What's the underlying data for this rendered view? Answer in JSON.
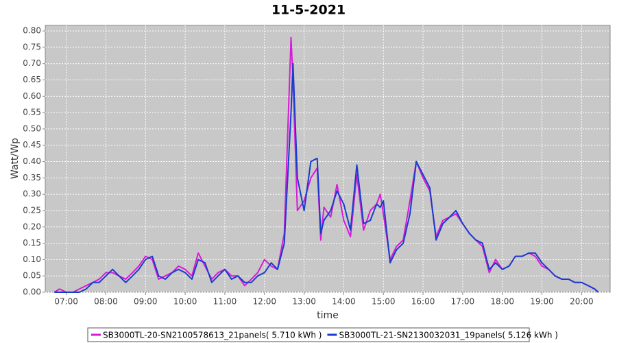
{
  "chart_data": {
    "type": "line",
    "title": "11-5-2021",
    "x_label": "time",
    "y_label": "Watt/Wp",
    "x": [
      6.7,
      6.83,
      7.0,
      7.17,
      7.33,
      7.5,
      7.67,
      7.83,
      8.0,
      8.17,
      8.33,
      8.5,
      8.67,
      8.83,
      9.0,
      9.17,
      9.33,
      9.5,
      9.67,
      9.83,
      10.0,
      10.17,
      10.33,
      10.5,
      10.67,
      10.83,
      11.0,
      11.17,
      11.33,
      11.5,
      11.67,
      11.83,
      12.0,
      12.17,
      12.33,
      12.5,
      12.67,
      12.72,
      12.83,
      13.0,
      13.17,
      13.33,
      13.42,
      13.5,
      13.67,
      13.83,
      14.0,
      14.17,
      14.33,
      14.5,
      14.67,
      14.83,
      14.92,
      15.0,
      15.17,
      15.33,
      15.5,
      15.67,
      15.83,
      16.0,
      16.17,
      16.33,
      16.5,
      16.67,
      16.83,
      17.0,
      17.17,
      17.33,
      17.5,
      17.67,
      17.83,
      18.0,
      18.17,
      18.33,
      18.5,
      18.67,
      18.83,
      19.0,
      19.17,
      19.33,
      19.5,
      19.67,
      19.83,
      20.0,
      20.17,
      20.33,
      20.42
    ],
    "series": [
      {
        "name": "SB3000TL-20-SN2100578613_21panels( 5.710 kWh )",
        "color": "#d81ad8",
        "values": [
          0,
          0.01,
          0,
          0,
          0.01,
          0.02,
          0.03,
          0.04,
          0.06,
          0.06,
          0.05,
          0.04,
          0.06,
          0.08,
          0.11,
          0.1,
          0.04,
          0.05,
          0.06,
          0.08,
          0.07,
          0.05,
          0.12,
          0.08,
          0.04,
          0.06,
          0.07,
          0.05,
          0.05,
          0.02,
          0.04,
          0.06,
          0.1,
          0.08,
          0.07,
          0.18,
          0.78,
          0.65,
          0.25,
          0.28,
          0.35,
          0.38,
          0.16,
          0.26,
          0.23,
          0.33,
          0.22,
          0.17,
          0.36,
          0.19,
          0.25,
          0.27,
          0.3,
          0.24,
          0.1,
          0.14,
          0.16,
          0.28,
          0.4,
          0.35,
          0.31,
          0.17,
          0.22,
          0.23,
          0.24,
          0.21,
          0.18,
          0.16,
          0.14,
          0.06,
          0.1,
          0.07,
          0.08,
          0.11,
          0.11,
          0.12,
          0.11,
          0.08,
          0.07,
          0.05,
          0.04,
          0.04,
          0.03,
          0.03,
          0.02,
          0.01,
          0
        ]
      },
      {
        "name": "SB3000TL-21-SN2130032031_19panels( 5.126 kWh )",
        "color": "#1a3ccc",
        "values": [
          0,
          0,
          0,
          0,
          0,
          0.01,
          0.03,
          0.03,
          0.05,
          0.07,
          0.05,
          0.03,
          0.05,
          0.07,
          0.1,
          0.11,
          0.05,
          0.04,
          0.06,
          0.07,
          0.06,
          0.04,
          0.1,
          0.09,
          0.03,
          0.05,
          0.07,
          0.04,
          0.05,
          0.03,
          0.03,
          0.05,
          0.06,
          0.09,
          0.07,
          0.15,
          0.55,
          0.7,
          0.35,
          0.25,
          0.4,
          0.41,
          0.18,
          0.22,
          0.25,
          0.31,
          0.27,
          0.19,
          0.39,
          0.21,
          0.22,
          0.27,
          0.26,
          0.28,
          0.09,
          0.13,
          0.15,
          0.24,
          0.4,
          0.36,
          0.32,
          0.16,
          0.21,
          0.23,
          0.25,
          0.21,
          0.18,
          0.16,
          0.15,
          0.07,
          0.09,
          0.07,
          0.08,
          0.11,
          0.11,
          0.12,
          0.12,
          0.09,
          0.07,
          0.05,
          0.04,
          0.04,
          0.03,
          0.03,
          0.02,
          0.01,
          0
        ]
      }
    ],
    "xlim": [
      6.47,
      20.72
    ],
    "ylim": [
      0,
      0.817
    ],
    "xticks": [
      {
        "value": 7,
        "label": "07:00"
      },
      {
        "value": 8,
        "label": "08:00"
      },
      {
        "value": 9,
        "label": "09:00"
      },
      {
        "value": 10,
        "label": "10:00"
      },
      {
        "value": 11,
        "label": "11:00"
      },
      {
        "value": 12,
        "label": "12:00"
      },
      {
        "value": 13,
        "label": "13:00"
      },
      {
        "value": 14,
        "label": "14:00"
      },
      {
        "value": 15,
        "label": "15:00"
      },
      {
        "value": 16,
        "label": "16:00"
      },
      {
        "value": 17,
        "label": "17:00"
      },
      {
        "value": 18,
        "label": "18:00"
      },
      {
        "value": 19,
        "label": "19:00"
      },
      {
        "value": 20,
        "label": "20:00"
      }
    ],
    "yticks": [
      {
        "value": 0,
        "label": "0.00"
      },
      {
        "value": 0.05,
        "label": "0.05"
      },
      {
        "value": 0.1,
        "label": "0.10"
      },
      {
        "value": 0.15,
        "label": "0.15"
      },
      {
        "value": 0.2,
        "label": "0.20"
      },
      {
        "value": 0.25,
        "label": "0.25"
      },
      {
        "value": 0.3,
        "label": "0.30"
      },
      {
        "value": 0.35,
        "label": "0.35"
      },
      {
        "value": 0.4,
        "label": "0.40"
      },
      {
        "value": 0.45,
        "label": "0.45"
      },
      {
        "value": 0.5,
        "label": "0.50"
      },
      {
        "value": 0.55,
        "label": "0.55"
      },
      {
        "value": 0.6,
        "label": "0.60"
      },
      {
        "value": 0.65,
        "label": "0.65"
      },
      {
        "value": 0.7,
        "label": "0.70"
      },
      {
        "value": 0.75,
        "label": "0.75"
      },
      {
        "value": 0.8,
        "label": "0.80"
      }
    ],
    "grid": true,
    "legend": "bottom"
  }
}
